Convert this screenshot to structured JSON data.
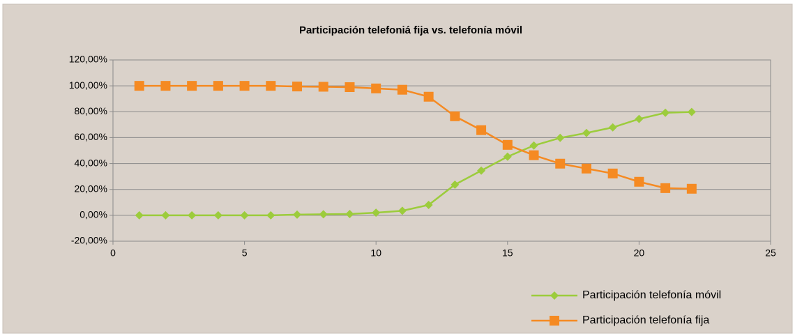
{
  "chart_data": {
    "type": "line",
    "title": "Participación telefoniá fija vs. telefonía móvil",
    "x": [
      1,
      2,
      3,
      4,
      5,
      6,
      7,
      8,
      9,
      10,
      11,
      12,
      13,
      14,
      15,
      16,
      17,
      18,
      19,
      20,
      21,
      22
    ],
    "series": [
      {
        "name": "Participación telefonía móvil",
        "color": "#9ccc3c",
        "marker": "diamond",
        "values": [
          0,
          0,
          0,
          0,
          0,
          0,
          0.5,
          0.8,
          1,
          2,
          3.5,
          8,
          23.7,
          34.5,
          45.3,
          53.9,
          59.8,
          63.6,
          67.9,
          74.4,
          79.2,
          79.8
        ]
      },
      {
        "name": "Participación telefonía fija",
        "color": "#f58a22",
        "marker": "square",
        "values": [
          100,
          100,
          100,
          100,
          100,
          100,
          99.5,
          99.3,
          99,
          98,
          97,
          91.6,
          76.5,
          65.8,
          54.4,
          46.4,
          39.9,
          36.1,
          32.3,
          25.9,
          21,
          20.5
        ]
      }
    ],
    "xlim": [
      0,
      25
    ],
    "xticks": [
      0,
      5,
      10,
      15,
      20,
      25
    ],
    "ylim": [
      -20,
      120
    ],
    "yticks": [
      {
        "value": -20,
        "label": "-20,00%"
      },
      {
        "value": 0,
        "label": "0,00%"
      },
      {
        "value": 20,
        "label": "20,00%"
      },
      {
        "value": 40,
        "label": "40,00%"
      },
      {
        "value": 60,
        "label": "60,00%"
      },
      {
        "value": 80,
        "label": "80,00%"
      },
      {
        "value": 100,
        "label": "100,00%"
      },
      {
        "value": 120,
        "label": "120,00%"
      }
    ],
    "grid": true,
    "legend": "bottom-right"
  }
}
